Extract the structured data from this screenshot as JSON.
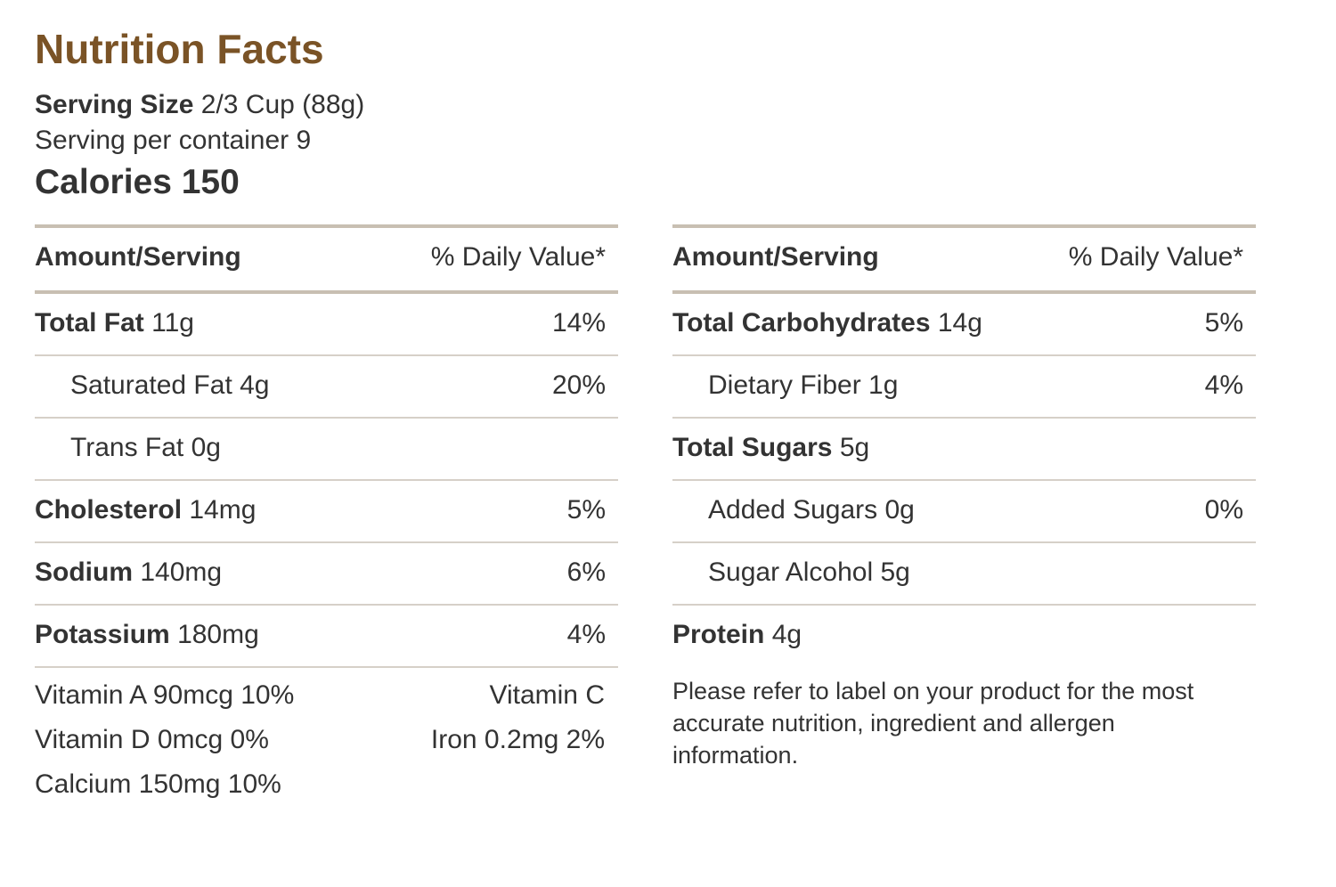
{
  "title": "Nutrition Facts",
  "serving": {
    "size_label": "Serving Size",
    "size_value": "2/3 Cup (88g)",
    "per_container": "Serving per container 9"
  },
  "calories": "Calories 150",
  "header": {
    "amount_label": "Amount/Serving",
    "dv_label": "% Daily Value*"
  },
  "left_rows": [
    {
      "name": "Total Fat",
      "amount": "11g",
      "dv": "14%",
      "bold": true
    },
    {
      "name": "Saturated Fat 4g",
      "amount": "",
      "dv": "20%",
      "bold": false
    },
    {
      "name": "Trans Fat 0g",
      "amount": "",
      "dv": "",
      "bold": false
    },
    {
      "name": "Cholesterol",
      "amount": "14mg",
      "dv": "5%",
      "bold": true
    },
    {
      "name": "Sodium",
      "amount": "140mg",
      "dv": "6%",
      "bold": true
    },
    {
      "name": "Potassium",
      "amount": "180mg",
      "dv": "4%",
      "bold": true
    }
  ],
  "right_rows": [
    {
      "name": "Total Carbohydrates",
      "amount": "14g",
      "dv": "5%",
      "bold": true
    },
    {
      "name": "Dietary Fiber 1g",
      "amount": "",
      "dv": "4%",
      "bold": false
    },
    {
      "name": "Total Sugars",
      "amount": "5g",
      "dv": "",
      "bold": true
    },
    {
      "name": "Added Sugars 0g",
      "amount": "",
      "dv": "0%",
      "bold": false
    },
    {
      "name": "Sugar Alcohol 5g",
      "amount": "",
      "dv": "",
      "bold": false
    },
    {
      "name": "Protein",
      "amount": "4g",
      "dv": "",
      "bold": true
    }
  ],
  "vitamins": {
    "vitamin_a": "Vitamin A 90mcg 10%",
    "vitamin_c": "Vitamin C",
    "vitamin_d": "Vitamin D 0mcg 0%",
    "iron": "Iron 0.2mg 2%",
    "calcium": "Calcium 150mg 10%"
  },
  "note": "Please refer to label on your product for the most accurate nutrition, ingredient and allergen information.",
  "colors": {
    "title": "#7a5326",
    "text": "#333333",
    "rule_heavy": "#c8bfb2",
    "rule_light": "#d6d0c8"
  }
}
